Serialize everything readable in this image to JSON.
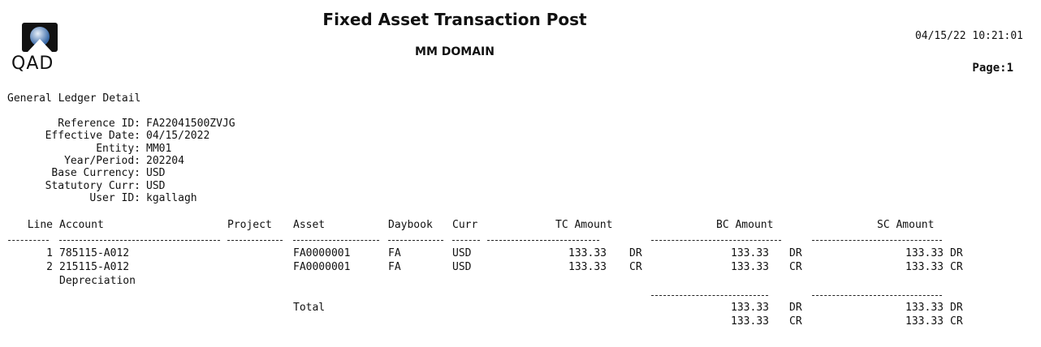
{
  "header": {
    "title": "Fixed Asset Transaction Post",
    "domain": "MM DOMAIN",
    "timestamp": "04/15/22 10:21:01",
    "page": "Page:1",
    "logo_text": "QAD"
  },
  "section": "General Ledger Detail",
  "details": [
    {
      "label": "Reference ID:",
      "value": "FA22041500ZVJG"
    },
    {
      "label": "Effective Date:",
      "value": "04/15/2022"
    },
    {
      "label": "Entity:",
      "value": "MM01"
    },
    {
      "label": "Year/Period:",
      "value": "202204"
    },
    {
      "label": "Base Currency:",
      "value": "USD"
    },
    {
      "label": "Statutory Curr:",
      "value": "USD"
    },
    {
      "label": "User ID:",
      "value": "kgallagh"
    }
  ],
  "columns": {
    "line": "Line",
    "account": "Account",
    "project": "Project",
    "asset": "Asset",
    "daybook": "Daybook",
    "curr": "Curr",
    "tc": "TC Amount",
    "bc": "BC Amount",
    "sc": "SC Amount"
  },
  "rows": [
    {
      "line": "1",
      "account": "785115-A012",
      "project": "",
      "asset": "FA0000001",
      "daybook": "FA",
      "curr": "USD",
      "tc": "133.33",
      "tc_dc": "DR",
      "bc": "133.33",
      "bc_dc": "DR",
      "sc": "133.33",
      "sc_dc": "DR"
    },
    {
      "line": "2",
      "account": "215115-A012",
      "desc": "Depreciation",
      "project": "",
      "asset": "FA0000001",
      "daybook": "FA",
      "curr": "USD",
      "tc": "133.33",
      "tc_dc": "CR",
      "bc": "133.33",
      "bc_dc": "CR",
      "sc": "133.33",
      "sc_dc": "CR"
    }
  ],
  "total": {
    "label": "Total",
    "bc_dr": "133.33",
    "bc_dr_dc": "DR",
    "bc_cr": "133.33",
    "bc_cr_dc": "CR",
    "sc_dr": "133.33",
    "sc_dr_dc": "DR",
    "sc_cr": "133.33",
    "sc_cr_dc": "CR"
  }
}
